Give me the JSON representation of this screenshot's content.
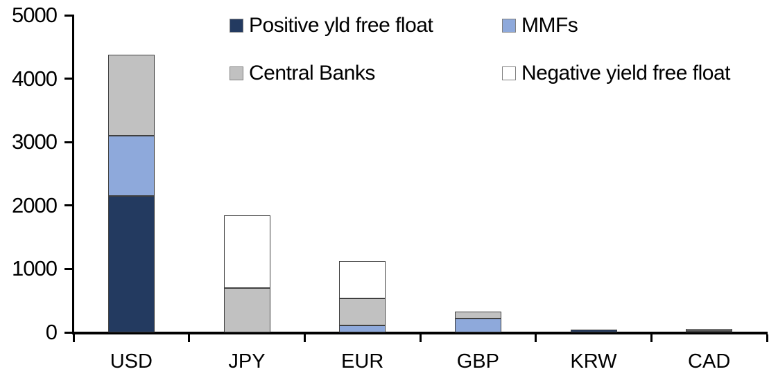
{
  "chart_data": {
    "type": "bar",
    "stacked": true,
    "title": "",
    "xlabel": "",
    "ylabel": "",
    "categories": [
      "USD",
      "JPY",
      "EUR",
      "GBP",
      "KRW",
      "CAD"
    ],
    "series": [
      {
        "name": "Positive yld free float",
        "color": "#233a60",
        "values": [
          2150,
          0,
          0,
          0,
          45,
          25
        ]
      },
      {
        "name": "MMFs",
        "color": "#8ea9db",
        "values": [
          950,
          0,
          110,
          220,
          0,
          0
        ]
      },
      {
        "name": "Central Banks",
        "color": "#c1c1c1",
        "values": [
          1280,
          700,
          430,
          110,
          0,
          30
        ]
      },
      {
        "name": "Negative yield free float",
        "color": "#ffffff",
        "values": [
          0,
          1140,
          580,
          0,
          0,
          0
        ]
      }
    ],
    "totals": [
      4380,
      1840,
      1120,
      330,
      45,
      55
    ],
    "ylim": [
      0,
      5000
    ],
    "yticks": [
      0,
      1000,
      2000,
      3000,
      4000,
      5000
    ],
    "grid": false,
    "legend_position": "top",
    "legend_rows": [
      [
        0,
        1
      ],
      [
        2,
        3
      ]
    ],
    "colors": {
      "axis": "#000000",
      "segment_border": "#404040",
      "swatch_border": "#7f7f7f",
      "text": "#000000",
      "background": "#ffffff"
    }
  }
}
